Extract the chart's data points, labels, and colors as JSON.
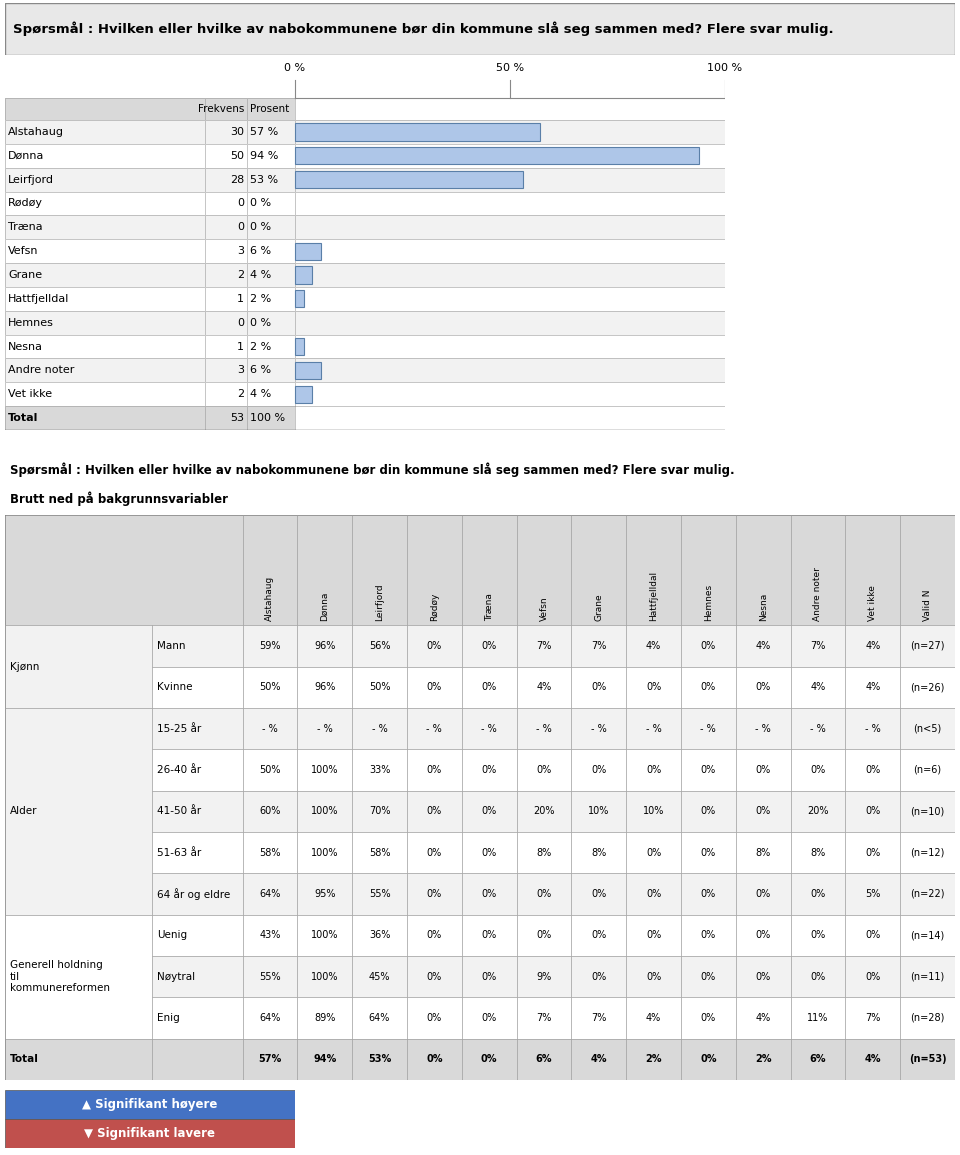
{
  "title": "Spørsmål : Hvilken eller hvilke av nabokommunene bør din kommune slå seg sammen med? Flere svar mulig.",
  "title2_line1": "Spørsmål : Hvilken eller hvilke av nabokommunene bør din kommune slå seg sammen med? Flere svar mulig.",
  "title2_line2": "Brutt ned på bakgrunnsvariabler",
  "bar_rows": [
    {
      "label": "Alstahaug",
      "freq": 30,
      "pct": "57 %",
      "value": 57
    },
    {
      "label": "Dønna",
      "freq": 50,
      "pct": "94 %",
      "value": 94
    },
    {
      "label": "Leirfjord",
      "freq": 28,
      "pct": "53 %",
      "value": 53
    },
    {
      "label": "Rødøy",
      "freq": 0,
      "pct": "0 %",
      "value": 0
    },
    {
      "label": "Træna",
      "freq": 0,
      "pct": "0 %",
      "value": 0
    },
    {
      "label": "Vefsn",
      "freq": 3,
      "pct": "6 %",
      "value": 6
    },
    {
      "label": "Grane",
      "freq": 2,
      "pct": "4 %",
      "value": 4
    },
    {
      "label": "Hattfjelldal",
      "freq": 1,
      "pct": "2 %",
      "value": 2
    },
    {
      "label": "Hemnes",
      "freq": 0,
      "pct": "0 %",
      "value": 0
    },
    {
      "label": "Nesna",
      "freq": 1,
      "pct": "2 %",
      "value": 2
    },
    {
      "label": "Andre noter",
      "freq": 3,
      "pct": "6 %",
      "value": 6
    },
    {
      "label": "Vet ikke",
      "freq": 2,
      "pct": "4 %",
      "value": 4
    },
    {
      "label": "Total",
      "freq": 53,
      "pct": "100 %",
      "value": null
    }
  ],
  "bar_color": "#aec6e8",
  "bar_edge_color": "#5a7fa8",
  "table2_col_headers": [
    "Alstahaug",
    "Dønna",
    "Leirfjord",
    "Rødøy",
    "Træna",
    "Vefsn",
    "Grane",
    "Hattfjelldal",
    "Hemnes",
    "Nesna",
    "Andre noter",
    "Vet ikke",
    "Valid N"
  ],
  "table2_row_groups": [
    {
      "group": "Kjønn",
      "rows": [
        {
          "sub": "Mann",
          "vals": [
            "59%",
            "96%",
            "56%",
            "0%",
            "0%",
            "7%",
            "7%",
            "4%",
            "0%",
            "4%",
            "7%",
            "4%",
            "(n=27)"
          ]
        },
        {
          "sub": "Kvinne",
          "vals": [
            "50%",
            "96%",
            "50%",
            "0%",
            "0%",
            "4%",
            "0%",
            "0%",
            "0%",
            "0%",
            "4%",
            "4%",
            "(n=26)"
          ]
        }
      ]
    },
    {
      "group": "Alder",
      "rows": [
        {
          "sub": "15-25 år",
          "vals": [
            "- %",
            "- %",
            "- %",
            "- %",
            "- %",
            "- %",
            "- %",
            "- %",
            "- %",
            "- %",
            "- %",
            "- %",
            "(n<5)"
          ]
        },
        {
          "sub": "26-40 år",
          "vals": [
            "50%",
            "100%",
            "33%",
            "0%",
            "0%",
            "0%",
            "0%",
            "0%",
            "0%",
            "0%",
            "0%",
            "0%",
            "(n=6)"
          ]
        },
        {
          "sub": "41-50 år",
          "vals": [
            "60%",
            "100%",
            "70%",
            "0%",
            "0%",
            "20%",
            "10%",
            "10%",
            "0%",
            "0%",
            "20%",
            "0%",
            "(n=10)"
          ]
        },
        {
          "sub": "51-63 år",
          "vals": [
            "58%",
            "100%",
            "58%",
            "0%",
            "0%",
            "8%",
            "8%",
            "0%",
            "0%",
            "8%",
            "8%",
            "0%",
            "(n=12)"
          ]
        },
        {
          "sub": "64 år og eldre",
          "vals": [
            "64%",
            "95%",
            "55%",
            "0%",
            "0%",
            "0%",
            "0%",
            "0%",
            "0%",
            "0%",
            "0%",
            "5%",
            "(n=22)"
          ]
        }
      ]
    },
    {
      "group": "Generell holdning\ntil\nkommunereformen",
      "rows": [
        {
          "sub": "Uenig",
          "vals": [
            "43%",
            "100%",
            "36%",
            "0%",
            "0%",
            "0%",
            "0%",
            "0%",
            "0%",
            "0%",
            "0%",
            "0%",
            "(n=14)"
          ]
        },
        {
          "sub": "Nøytral",
          "vals": [
            "55%",
            "100%",
            "45%",
            "0%",
            "0%",
            "9%",
            "0%",
            "0%",
            "0%",
            "0%",
            "0%",
            "0%",
            "(n=11)"
          ]
        },
        {
          "sub": "Enig",
          "vals": [
            "64%",
            "89%",
            "64%",
            "0%",
            "0%",
            "7%",
            "7%",
            "4%",
            "0%",
            "4%",
            "11%",
            "7%",
            "(n=28)"
          ]
        }
      ]
    },
    {
      "group": "Total",
      "rows": [
        {
          "sub": "",
          "vals": [
            "57%",
            "94%",
            "53%",
            "0%",
            "0%",
            "6%",
            "4%",
            "2%",
            "0%",
            "2%",
            "6%",
            "4%",
            "(n=53)"
          ]
        }
      ]
    }
  ],
  "legend_higher_color": "#4472c4",
  "legend_lower_color": "#c0504d",
  "legend_higher_text": "▲ Signifikant høyere",
  "legend_lower_text": "▼ Signifikant lavere",
  "bg_color": "#e8e8e8",
  "table_header_bg": "#d9d9d9",
  "table_row_bg": "#ffffff",
  "table_alt_bg": "#f2f2f2"
}
